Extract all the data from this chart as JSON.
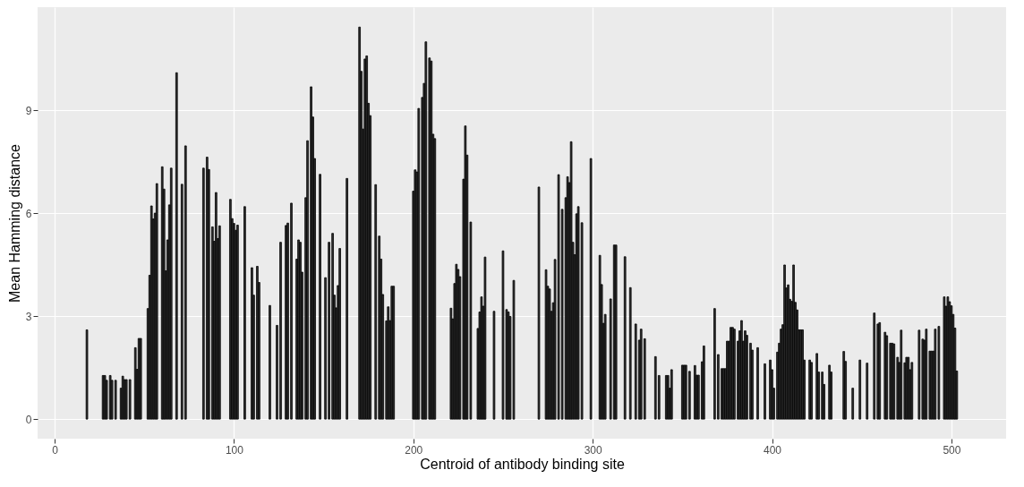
{
  "chart_data": {
    "type": "bar",
    "xlabel": "Centroid of antibody binding site",
    "ylabel": "Mean Hamming distance",
    "x": [
      18,
      27,
      28,
      29,
      31,
      32,
      34,
      37,
      38,
      39,
      40,
      42,
      45,
      46,
      47,
      48,
      52,
      53,
      54,
      55,
      56,
      57,
      60,
      61,
      62,
      63,
      64,
      65,
      68,
      71,
      73,
      83,
      85,
      86,
      88,
      89,
      90,
      91,
      92,
      98,
      99,
      100,
      101,
      102,
      106,
      110,
      111,
      113,
      114,
      120,
      124,
      126,
      129,
      130,
      132,
      135,
      136,
      137,
      138,
      140,
      141,
      143,
      144,
      145,
      148,
      151,
      153,
      155,
      156,
      157,
      158,
      159,
      163,
      170,
      171,
      172,
      173,
      174,
      175,
      176,
      179,
      181,
      182,
      183,
      185,
      186,
      187,
      188,
      189,
      200,
      201,
      202,
      203,
      205,
      206,
      207,
      209,
      210,
      211,
      212,
      221,
      222,
      223,
      224,
      225,
      226,
      228,
      229,
      230,
      232,
      236,
      237,
      238,
      239,
      240,
      245,
      250,
      252,
      253,
      254,
      256,
      270,
      274,
      275,
      276,
      277,
      278,
      279,
      281,
      283,
      285,
      286,
      287,
      288,
      289,
      290,
      291,
      292,
      294,
      299,
      304,
      305,
      306,
      307,
      310,
      312,
      313,
      318,
      321,
      324,
      326,
      327,
      329,
      335,
      337,
      341,
      342,
      343,
      344,
      350,
      351,
      352,
      354,
      357,
      358,
      359,
      361,
      362,
      368,
      370,
      372,
      373,
      374,
      375,
      376,
      377,
      378,
      379,
      381,
      382,
      383,
      384,
      385,
      386,
      388,
      389,
      392,
      396,
      399,
      400,
      401,
      403,
      404,
      405,
      406,
      407,
      408,
      409,
      410,
      411,
      412,
      413,
      414,
      415,
      416,
      417,
      418,
      421,
      422,
      425,
      426,
      428,
      429,
      432,
      433,
      440,
      441,
      445,
      449,
      453,
      457,
      459,
      460,
      463,
      464,
      466,
      467,
      468,
      470,
      471,
      472,
      474,
      475,
      476,
      477,
      478,
      482,
      484,
      485,
      486,
      488,
      489,
      490,
      491,
      493,
      496,
      497,
      498,
      499,
      500,
      501,
      502,
      503
    ],
    "values": [
      2.6,
      1.27,
      1.27,
      1.13,
      1.27,
      1.13,
      1.13,
      0.9,
      1.25,
      1.15,
      1.15,
      1.15,
      2.08,
      1.45,
      2.35,
      2.35,
      3.22,
      4.19,
      6.21,
      5.83,
      6.0,
      6.86,
      7.35,
      6.7,
      4.32,
      5.22,
      6.24,
      7.31,
      10.09,
      6.84,
      7.96,
      7.31,
      7.63,
      7.27,
      5.6,
      5.18,
      6.6,
      5.26,
      5.63,
      6.4,
      5.84,
      5.7,
      5.5,
      5.65,
      6.19,
      4.41,
      3.61,
      4.45,
      3.98,
      3.31,
      2.73,
      5.15,
      5.64,
      5.71,
      6.29,
      4.66,
      5.22,
      5.15,
      4.28,
      6.45,
      8.11,
      9.68,
      8.8,
      7.59,
      7.13,
      4.12,
      5.15,
      5.41,
      3.61,
      3.24,
      3.89,
      4.97,
      7.01,
      11.42,
      10.13,
      8.45,
      10.49,
      10.58,
      9.2,
      8.84,
      6.83,
      5.33,
      4.66,
      3.63,
      2.86,
      3.27,
      2.87,
      3.87,
      3.87,
      6.64,
      7.26,
      7.2,
      9.05,
      9.37,
      9.78,
      10.99,
      10.52,
      10.43,
      8.3,
      8.17,
      3.23,
      2.92,
      3.95,
      4.51,
      4.36,
      4.15,
      6.99,
      8.54,
      7.69,
      5.74,
      2.64,
      3.12,
      3.56,
      3.29,
      4.72,
      3.14,
      4.9,
      3.19,
      3.12,
      2.99,
      4.04,
      6.76,
      4.35,
      3.87,
      3.79,
      3.14,
      3.39,
      4.65,
      7.12,
      6.11,
      6.45,
      7.06,
      6.89,
      8.08,
      5.15,
      4.79,
      5.98,
      6.19,
      5.72,
      7.59,
      4.77,
      3.92,
      2.79,
      3.05,
      3.5,
      5.07,
      5.07,
      4.73,
      3.83,
      2.77,
      2.3,
      2.62,
      2.34,
      1.82,
      1.27,
      1.27,
      1.27,
      0.9,
      1.44,
      1.57,
      1.57,
      1.57,
      1.39,
      1.56,
      1.28,
      1.28,
      1.67,
      2.13,
      3.22,
      1.88,
      1.47,
      1.47,
      1.47,
      2.27,
      2.27,
      2.67,
      2.67,
      2.62,
      2.27,
      2.57,
      2.87,
      2.27,
      2.57,
      2.44,
      2.21,
      2.01,
      2.08,
      1.61,
      1.72,
      1.44,
      0.9,
      1.95,
      2.21,
      2.62,
      2.75,
      4.49,
      3.82,
      3.91,
      3.49,
      3.43,
      4.49,
      3.4,
      3.18,
      2.6,
      2.6,
      2.6,
      1.72,
      1.72,
      1.65,
      1.91,
      1.37,
      1.37,
      1.01,
      1.57,
      1.37,
      1.97,
      1.68,
      0.9,
      1.72,
      1.63,
      3.09,
      2.77,
      2.81,
      2.53,
      2.43,
      2.21,
      2.21,
      2.19,
      1.8,
      1.65,
      2.59,
      1.64,
      1.8,
      1.8,
      1.44,
      1.65,
      2.59,
      2.33,
      2.3,
      2.62,
      1.98,
      1.98,
      1.98,
      2.62,
      2.7,
      3.56,
      3.29,
      3.56,
      3.42,
      3.3,
      3.05,
      2.65,
      1.4
    ],
    "color": "#2e2e2e",
    "xlim": [
      -7,
      528
    ],
    "ylim": [
      -0.57,
      12
    ],
    "xticks": [
      0,
      100,
      200,
      300,
      400,
      500
    ],
    "yticks": [
      0,
      3,
      6,
      9
    ],
    "grid": true
  }
}
